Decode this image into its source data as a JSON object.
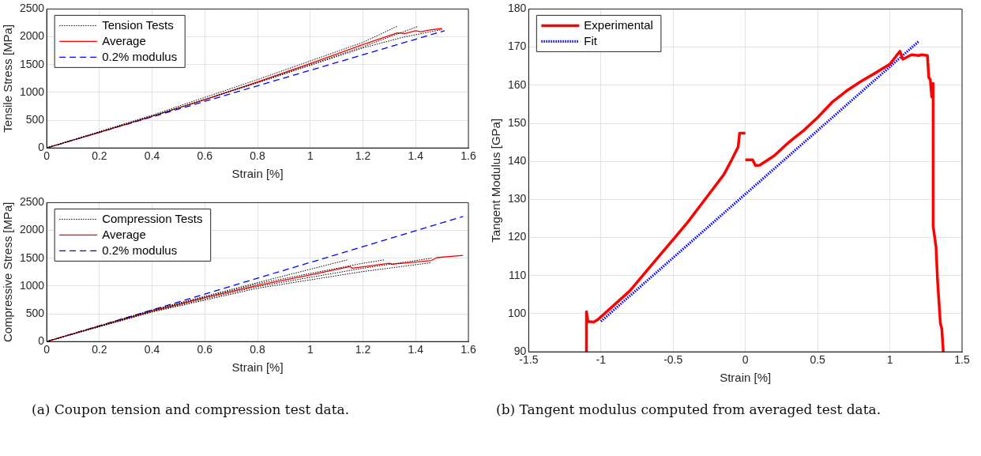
{
  "chart_data": [
    {
      "type": "line",
      "xlabel": "Strain [%]",
      "ylabel": "Tensile Stress [MPa]",
      "xlim": [
        0,
        1.6
      ],
      "xticks": [
        0,
        0.2,
        0.4,
        0.6,
        0.8,
        1,
        1.2,
        1.4,
        1.6
      ],
      "ylim": [
        0,
        2500
      ],
      "yticks": [
        0,
        500,
        1000,
        1500,
        2000,
        2500
      ],
      "grid": true,
      "legend": "top left",
      "series": [
        {
          "name": "Tension Tests",
          "color": "#000000",
          "line_style": "dotted",
          "x": [
            0,
            0.4,
            0.8,
            1.2,
            1.33
          ],
          "values": [
            0,
            590,
            1230,
            1900,
            2190
          ]
        },
        {
          "color": "#000000",
          "line_style": "dotted",
          "x": [
            0,
            0.4,
            0.8,
            1.2,
            1.41
          ],
          "values": [
            0,
            570,
            1180,
            1820,
            2190
          ]
        },
        {
          "color": "#000000",
          "line_style": "dotted",
          "x": [
            0,
            0.4,
            0.8,
            1.2,
            1.35,
            1.5
          ],
          "values": [
            0,
            570,
            1170,
            1800,
            1990,
            2130
          ]
        },
        {
          "name": "Average",
          "color": "#ff0000",
          "line_style": "solid",
          "x": [
            0,
            0.2,
            0.4,
            0.6,
            0.8,
            1.0,
            1.2,
            1.33,
            1.36,
            1.4,
            1.42,
            1.45,
            1.5
          ],
          "values": [
            0,
            280,
            570,
            870,
            1190,
            1520,
            1860,
            2070,
            2060,
            2110,
            2090,
            2120,
            2150
          ]
        },
        {
          "name": "0.2% modulus",
          "color": "#0000ff",
          "line_style": "dashed",
          "x": [
            0,
            1.51
          ],
          "values": [
            0,
            2110
          ]
        }
      ]
    },
    {
      "type": "line",
      "xlabel": "Strain [%]",
      "ylabel": "Compressive Stress [MPa]",
      "xlim": [
        0,
        1.6
      ],
      "xticks": [
        0,
        0.2,
        0.4,
        0.6,
        0.8,
        1,
        1.2,
        1.4,
        1.6
      ],
      "ylim": [
        0,
        2500
      ],
      "yticks": [
        0,
        500,
        1000,
        1500,
        2000,
        2500
      ],
      "grid": true,
      "legend": "top left",
      "annotations": [
        "(a) Coupon tension and compression test data."
      ],
      "series": [
        {
          "name": "Compression Tests",
          "color": "#000000",
          "line_style": "dotted",
          "x": [
            0,
            0.4,
            0.8,
            1.14
          ],
          "values": [
            0,
            570,
            1060,
            1470
          ]
        },
        {
          "color": "#000000",
          "line_style": "dotted",
          "x": [
            0,
            0.4,
            0.8,
            1.2,
            1.28
          ],
          "values": [
            0,
            560,
            1040,
            1410,
            1470
          ]
        },
        {
          "color": "#000000",
          "line_style": "dotted",
          "x": [
            0,
            0.4,
            0.8,
            1.2,
            1.46
          ],
          "values": [
            0,
            540,
            990,
            1320,
            1500
          ]
        },
        {
          "color": "#000000",
          "line_style": "dotted",
          "x": [
            0,
            0.4,
            0.8,
            1.2,
            1.46
          ],
          "values": [
            0,
            530,
            960,
            1260,
            1420
          ]
        },
        {
          "name": "Average",
          "color": "#ff0000",
          "line_style": "solid",
          "x": [
            0,
            0.2,
            0.4,
            0.6,
            0.8,
            1.0,
            1.15,
            1.16,
            1.3,
            1.31,
            1.46,
            1.48,
            1.58
          ],
          "values": [
            0,
            280,
            550,
            790,
            1010,
            1200,
            1350,
            1320,
            1410,
            1390,
            1460,
            1510,
            1550
          ]
        },
        {
          "name": "0.2% modulus",
          "color": "#0000ff",
          "line_style": "dashed",
          "x": [
            0,
            1.58
          ],
          "values": [
            0,
            2250
          ]
        }
      ]
    },
    {
      "type": "line",
      "xlabel": "Strain [%]",
      "ylabel": "Tangent Modulus [GPa]",
      "xlim": [
        -1.5,
        1.5
      ],
      "xticks": [
        -1.5,
        -1,
        -0.5,
        0,
        0.5,
        1,
        1.5
      ],
      "ylim": [
        90,
        180
      ],
      "yticks": [
        90,
        100,
        110,
        120,
        130,
        140,
        150,
        160,
        170,
        180
      ],
      "grid": true,
      "legend": "top left",
      "annotations": [
        "(b) Tangent modulus computed from averaged test data."
      ],
      "series": [
        {
          "name": "Experimental",
          "color": "#ff0000",
          "line_style": "solid",
          "x": [
            -1.1,
            -1.1,
            -1.09,
            -1.05,
            -1.02,
            -1,
            -0.8,
            -0.6,
            -0.5,
            -0.4,
            -0.3,
            -0.22,
            -0.15,
            -0.1,
            -0.05,
            -0.04,
            0
          ],
          "values": [
            90,
            100.5,
            98,
            97.8,
            98.5,
            99.2,
            106,
            115,
            119.5,
            124,
            129,
            133,
            136.5,
            140,
            143.8,
            147.4,
            147.4
          ]
        },
        {
          "color": "#ff0000",
          "line_style": "solid",
          "x": [
            0,
            0.05,
            0.07,
            0.1,
            0.2,
            0.3,
            0.4,
            0.5,
            0.6,
            0.7,
            0.8,
            0.9,
            1.0,
            1.07,
            1.09,
            1.15,
            1.2,
            1.22,
            1.26,
            1.27,
            1.28,
            1.29,
            1.3,
            1.3,
            1.3,
            1.32,
            1.33,
            1.35,
            1.36,
            1.37
          ],
          "values": [
            140.4,
            140.4,
            138.9,
            139,
            141.5,
            145,
            148,
            151.5,
            155.5,
            158.5,
            161,
            163.2,
            165.5,
            168.9,
            166.8,
            168,
            167.8,
            168,
            167.8,
            162,
            161.5,
            157,
            156.5,
            160.5,
            123,
            117.5,
            109,
            97.5,
            96,
            90
          ]
        },
        {
          "name": "Fit",
          "color": "#0000ff",
          "line_style": "dotted",
          "x": [
            -1,
            1.2
          ],
          "values": [
            98,
            171.5
          ]
        }
      ]
    }
  ]
}
